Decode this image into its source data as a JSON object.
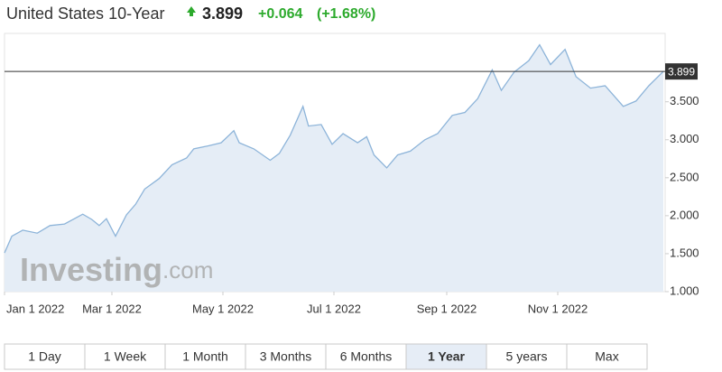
{
  "header": {
    "title": "United States 10-Year",
    "price": 3.899,
    "change": "+0.064",
    "change_pct": "(+1.68%)"
  },
  "watermark": {
    "brand": "Investing",
    "suffix": ".com"
  },
  "tabs": [
    "1 Day",
    "1 Week",
    "1 Month",
    "3 Months",
    "6 Months",
    "1 Year",
    "5 years",
    "Max"
  ],
  "selected_tab": "1 Year",
  "chart_data": {
    "type": "area",
    "line_color": "#8db4d9",
    "fill_color": "#e5edf6",
    "x": [
      "2022-01-01",
      "2022-01-05",
      "2022-01-11",
      "2022-01-19",
      "2022-01-26",
      "2022-02-03",
      "2022-02-13",
      "2022-02-18",
      "2022-02-22",
      "2022-02-26",
      "2022-03-03",
      "2022-03-09",
      "2022-03-14",
      "2022-03-19",
      "2022-03-27",
      "2022-04-03",
      "2022-04-11",
      "2022-04-15",
      "2022-04-23",
      "2022-04-30",
      "2022-05-07",
      "2022-05-10",
      "2022-05-18",
      "2022-05-27",
      "2022-06-01",
      "2022-06-07",
      "2022-06-14",
      "2022-06-17",
      "2022-06-24",
      "2022-06-30",
      "2022-07-06",
      "2022-07-14",
      "2022-07-19",
      "2022-07-23",
      "2022-07-30",
      "2022-08-05",
      "2022-08-12",
      "2022-08-20",
      "2022-08-27",
      "2022-09-04",
      "2022-09-11",
      "2022-09-18",
      "2022-09-26",
      "2022-10-01",
      "2022-10-08",
      "2022-10-16",
      "2022-10-22",
      "2022-10-28",
      "2022-11-05",
      "2022-11-11",
      "2022-11-19",
      "2022-11-27",
      "2022-12-07",
      "2022-12-14",
      "2022-12-21",
      "2022-12-29"
    ],
    "values": [
      1.51,
      1.73,
      1.81,
      1.77,
      1.87,
      1.89,
      2.02,
      1.95,
      1.87,
      1.96,
      1.73,
      2.01,
      2.15,
      2.35,
      2.49,
      2.67,
      2.76,
      2.88,
      2.92,
      2.96,
      3.12,
      2.96,
      2.88,
      2.73,
      2.82,
      3.06,
      3.44,
      3.18,
      3.2,
      2.94,
      3.08,
      2.96,
      3.04,
      2.8,
      2.63,
      2.8,
      2.85,
      3.0,
      3.08,
      3.32,
      3.36,
      3.54,
      3.92,
      3.65,
      3.89,
      4.04,
      4.25,
      3.99,
      4.19,
      3.83,
      3.68,
      3.71,
      3.44,
      3.51,
      3.71,
      3.899
    ],
    "xlim": [
      "2022-01-01",
      "2022-12-30"
    ],
    "xticks": [
      {
        "value": "2022-01-01",
        "label": "Jan 1 2022"
      },
      {
        "value": "2022-03-01",
        "label": "Mar 1 2022"
      },
      {
        "value": "2022-05-01",
        "label": "May 1 2022"
      },
      {
        "value": "2022-07-01",
        "label": "Jul 1 2022"
      },
      {
        "value": "2022-09-01",
        "label": "Sep 1 2022"
      },
      {
        "value": "2022-11-01",
        "label": "Nov 1 2022"
      }
    ],
    "ylim": [
      1,
      4.4
    ],
    "yticks": [
      {
        "value": 1,
        "label": "1.000"
      },
      {
        "value": 1.5,
        "label": "1.500"
      },
      {
        "value": 2,
        "label": "2.000"
      },
      {
        "value": 2.5,
        "label": "2.500"
      },
      {
        "value": 3,
        "label": "3.000"
      },
      {
        "value": 3.5,
        "label": "3.500"
      }
    ],
    "reference_line": 3.899
  }
}
